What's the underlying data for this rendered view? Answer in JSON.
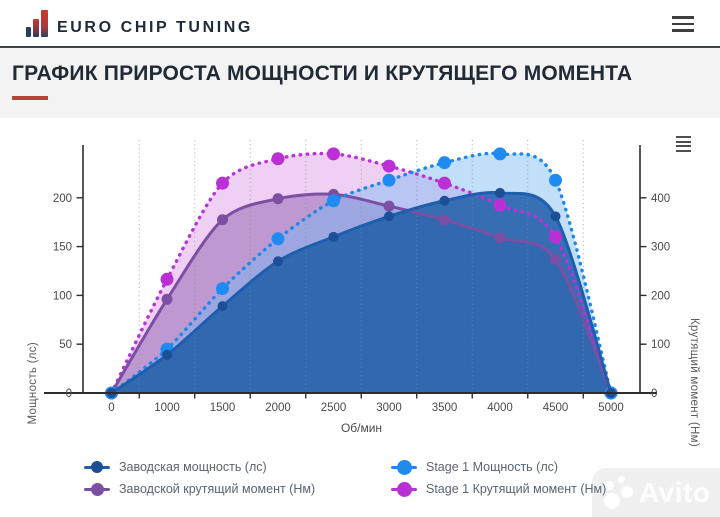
{
  "header": {
    "brand": "EURO CHIP TUNING",
    "brand_color": "#1d2a38",
    "menu_icon": "hamburger-icon"
  },
  "title": {
    "text": "ГРАФИК ПРИРОСТА МОЩНОСТИ И КРУТЯЩЕГО МОМЕНТА",
    "accent_color": "#b8433a"
  },
  "chart_data": {
    "type": "line",
    "x": [
      0,
      1000,
      1500,
      2000,
      2500,
      3000,
      3500,
      4000,
      4500,
      5000
    ],
    "x_tick_labels": [
      "0",
      "1000",
      "1500",
      "2000",
      "2500",
      "3000",
      "3500",
      "4000",
      "4500",
      "5000"
    ],
    "xlabel": "Об/мин",
    "y_axis_left": {
      "title": "Мощность (лс)",
      "ticks": [
        0,
        50,
        100,
        150,
        200
      ],
      "max": 255
    },
    "y_axis_right": {
      "title": "Крутящий момент (Нм)",
      "ticks": [
        0,
        100,
        200,
        300,
        400
      ],
      "max": 510
    },
    "grid": "vertical-dotted",
    "legend_position": "bottom",
    "series": [
      {
        "name": "Заводская мощность (лс)",
        "axis": "left",
        "line": "solid",
        "color": "#1d5fae",
        "marker_color": "#1b4f98",
        "fill": "rgba(31,93,167,0.85)",
        "marker_r": 5,
        "values": [
          0,
          39,
          89,
          135,
          160,
          181,
          197,
          205,
          181,
          0
        ]
      },
      {
        "name": "Stage 1 Мощность (лс)",
        "axis": "left",
        "line": "dotted",
        "color": "#1e88e8",
        "marker_color": "#1f8bf0",
        "fill": "rgba(120,185,245,0.45)",
        "marker_r": 6.5,
        "values": [
          0,
          45,
          107,
          158,
          197,
          218,
          236,
          245,
          218,
          0
        ]
      },
      {
        "name": "Заводской крутящий момент (Нм)",
        "axis": "right",
        "line": "solid",
        "color": "#7b4fa3",
        "marker_color": "#7b4fa3",
        "fill": "rgba(122,77,160,0.42)",
        "marker_r": 5.5,
        "values": [
          0,
          192,
          355,
          398,
          407,
          383,
          355,
          318,
          274,
          0
        ]
      },
      {
        "name": "Stage 1 Крутящий момент (Нм)",
        "axis": "right",
        "line": "dotted",
        "color": "#b832d8",
        "marker_color": "#bb2fd6",
        "fill": "rgba(205,95,220,0.30)",
        "marker_r": 6.5,
        "values": [
          0,
          233,
          430,
          480,
          490,
          465,
          430,
          385,
          320,
          0
        ]
      }
    ]
  },
  "watermark": {
    "text": "Avito"
  }
}
